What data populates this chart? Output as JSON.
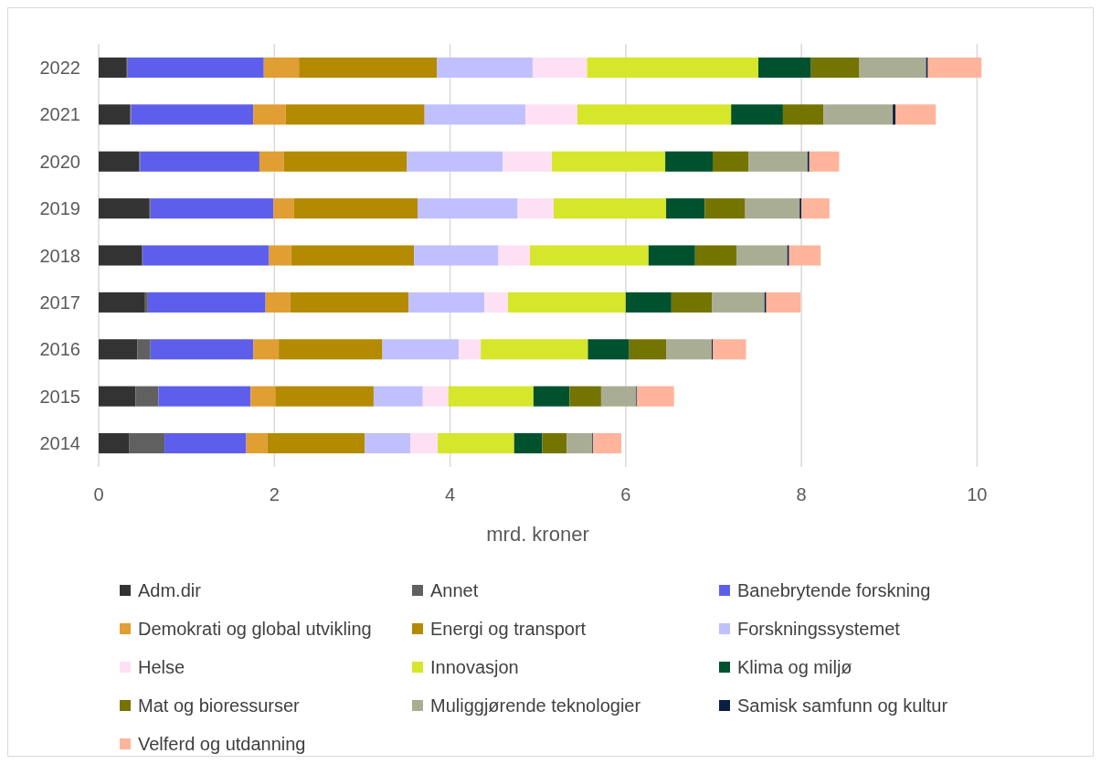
{
  "chart_data": {
    "type": "bar",
    "orientation": "horizontal",
    "stacked": true,
    "xlabel": "mrd. kroner",
    "categories": [
      "2022",
      "2021",
      "2020",
      "2019",
      "2018",
      "2017",
      "2016",
      "2015",
      "2014"
    ],
    "xlim": [
      0,
      10.1
    ],
    "xticks": [
      0,
      2,
      4,
      6,
      8,
      10
    ],
    "grid": "x",
    "legend": "bottom",
    "series": [
      {
        "name": "Adm.dir",
        "color": "#333333",
        "values": [
          0.32,
          0.36,
          0.46,
          0.58,
          0.49,
          0.52,
          0.44,
          0.42,
          0.35
        ]
      },
      {
        "name": "Annet",
        "color": "#606060",
        "values": [
          0.01,
          0.01,
          0.01,
          0.01,
          0.01,
          0.04,
          0.15,
          0.26,
          0.4
        ]
      },
      {
        "name": "Banebrytende forskning",
        "color": "#5e5eed",
        "values": [
          1.55,
          1.39,
          1.36,
          1.4,
          1.44,
          1.34,
          1.17,
          1.05,
          0.93
        ]
      },
      {
        "name": "Demokrati og global utvikling",
        "color": "#e09e33",
        "values": [
          0.4,
          0.37,
          0.28,
          0.23,
          0.25,
          0.28,
          0.29,
          0.28,
          0.24
        ]
      },
      {
        "name": "Energi og transport",
        "color": "#b38a00",
        "values": [
          1.57,
          1.58,
          1.4,
          1.41,
          1.4,
          1.35,
          1.18,
          1.12,
          1.11
        ]
      },
      {
        "name": "Forskningssystemet",
        "color": "#c0c0ff",
        "values": [
          1.09,
          1.15,
          1.09,
          1.14,
          0.96,
          0.86,
          0.87,
          0.56,
          0.52
        ]
      },
      {
        "name": "Helse",
        "color": "#fde0f3",
        "values": [
          0.62,
          0.59,
          0.56,
          0.41,
          0.36,
          0.27,
          0.25,
          0.29,
          0.31
        ]
      },
      {
        "name": "Innovasjon",
        "color": "#d5e62b",
        "values": [
          1.95,
          1.75,
          1.29,
          1.28,
          1.35,
          1.34,
          1.22,
          0.97,
          0.87
        ]
      },
      {
        "name": "Klima og miljø",
        "color": "#00522f",
        "values": [
          0.6,
          0.59,
          0.54,
          0.44,
          0.53,
          0.52,
          0.47,
          0.41,
          0.32
        ]
      },
      {
        "name": "Mat og bioressurser",
        "color": "#747400",
        "values": [
          0.55,
          0.46,
          0.41,
          0.46,
          0.47,
          0.46,
          0.42,
          0.36,
          0.28
        ]
      },
      {
        "name": "Muliggjørende teknologier",
        "color": "#a9ad93",
        "values": [
          0.76,
          0.79,
          0.67,
          0.62,
          0.58,
          0.6,
          0.52,
          0.4,
          0.29
        ]
      },
      {
        "name": "Samisk samfunn og kultur",
        "color": "#0b1f44",
        "values": [
          0.02,
          0.03,
          0.02,
          0.02,
          0.02,
          0.02,
          0.01,
          0.01,
          0.01
        ]
      },
      {
        "name": "Velferd og utdanning",
        "color": "#ffb49b",
        "values": [
          0.61,
          0.46,
          0.34,
          0.32,
          0.36,
          0.39,
          0.38,
          0.42,
          0.32
        ]
      }
    ]
  }
}
